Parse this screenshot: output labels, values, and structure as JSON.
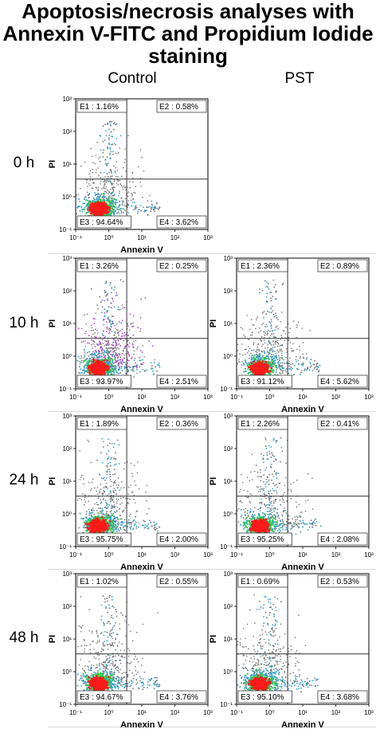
{
  "figure": {
    "title_lines": [
      "Apoptosis/necrosis analyses with",
      "Annexin V-FITC and Propidium Iodide",
      "staining"
    ],
    "column_headers": [
      "Control",
      "PST"
    ],
    "row_labels": [
      "0 h",
      "10 h",
      "24 h",
      "48 h"
    ]
  },
  "axis_text": {
    "xlabel": "Annexin V",
    "ylabel": "PI",
    "tick_labels": [
      "10⁻¹",
      "10⁰",
      "10¹",
      "10²",
      "10³"
    ]
  },
  "colors": {
    "core": "#ff1a1a",
    "mid": "#2ecc40",
    "outer": "#2fa0c8",
    "sparse": "#6f6f6f",
    "purple": "#b040d0",
    "gate_line": "#333333"
  },
  "chart_data": [
    {
      "type": "scatter",
      "kind": "flow-cytometry-quadrant",
      "row": "0 h",
      "column": "Control",
      "xlabel": "Annexin V",
      "ylabel": "PI",
      "log_scale": true,
      "xlim": [
        0.1,
        1000
      ],
      "ylim": [
        0.1,
        1000
      ],
      "gate": {
        "x": 3.5,
        "y": 3.5
      },
      "quadrants": {
        "E1": "1.16%",
        "E2": "0.58%",
        "E3": "94.64%",
        "E4": "3.62%"
      }
    },
    {
      "type": "scatter",
      "kind": "flow-cytometry-quadrant",
      "row": "10 h",
      "column": "Control",
      "xlabel": "Annexin V",
      "ylabel": "PI",
      "log_scale": true,
      "xlim": [
        0.1,
        1000
      ],
      "ylim": [
        0.1,
        1000
      ],
      "gate": {
        "x": 3.5,
        "y": 3.5
      },
      "quadrants": {
        "E1": "3.26%",
        "E2": "0.25%",
        "E3": "93.97%",
        "E4": "2.51%"
      }
    },
    {
      "type": "scatter",
      "kind": "flow-cytometry-quadrant",
      "row": "10 h",
      "column": "PST",
      "xlabel": "Annexin V",
      "ylabel": "PI",
      "log_scale": true,
      "xlim": [
        0.1,
        1000
      ],
      "ylim": [
        0.1,
        1000
      ],
      "gate": {
        "x": 3.5,
        "y": 3.5
      },
      "quadrants": {
        "E1": "2.36%",
        "E2": "0.89%",
        "E3": "91.12%",
        "E4": "5.62%"
      }
    },
    {
      "type": "scatter",
      "kind": "flow-cytometry-quadrant",
      "row": "24 h",
      "column": "Control",
      "xlabel": "Annexin V",
      "ylabel": "PI",
      "log_scale": true,
      "xlim": [
        0.1,
        1000
      ],
      "ylim": [
        0.1,
        1000
      ],
      "gate": {
        "x": 3.5,
        "y": 3.5
      },
      "quadrants": {
        "E1": "1.89%",
        "E2": "0.36%",
        "E3": "95.75%",
        "E4": "2.00%"
      }
    },
    {
      "type": "scatter",
      "kind": "flow-cytometry-quadrant",
      "row": "24 h",
      "column": "PST",
      "xlabel": "Annexin V",
      "ylabel": "PI",
      "log_scale": true,
      "xlim": [
        0.1,
        1000
      ],
      "ylim": [
        0.1,
        1000
      ],
      "gate": {
        "x": 3.5,
        "y": 3.5
      },
      "quadrants": {
        "E1": "2.26%",
        "E2": "0.41%",
        "E3": "95.25%",
        "E4": "2.08%"
      }
    },
    {
      "type": "scatter",
      "kind": "flow-cytometry-quadrant",
      "row": "48 h",
      "column": "Control",
      "xlabel": "Annexin V",
      "ylabel": "PI",
      "log_scale": true,
      "xlim": [
        0.1,
        1000
      ],
      "ylim": [
        0.1,
        1000
      ],
      "gate": {
        "x": 3.5,
        "y": 3.5
      },
      "quadrants": {
        "E1": "1.02%",
        "E2": "0.55%",
        "E3": "94.67%",
        "E4": "3.76%"
      }
    },
    {
      "type": "scatter",
      "kind": "flow-cytometry-quadrant",
      "row": "48 h",
      "column": "PST",
      "xlabel": "Annexin V",
      "ylabel": "PI",
      "log_scale": true,
      "xlim": [
        0.1,
        1000
      ],
      "ylim": [
        0.1,
        1000
      ],
      "gate": {
        "x": 3.5,
        "y": 3.5
      },
      "quadrants": {
        "E1": "0.69%",
        "E2": "0.53%",
        "E3": "95.10%",
        "E4": "3.68%"
      }
    }
  ]
}
